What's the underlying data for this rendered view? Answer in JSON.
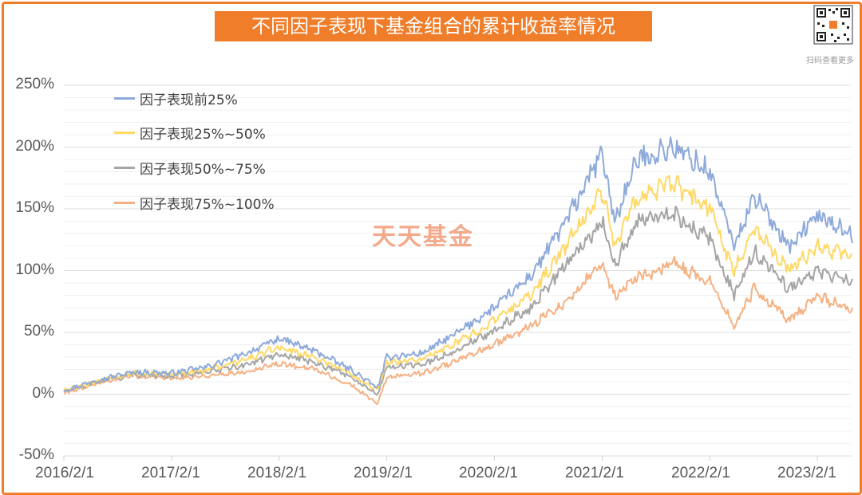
{
  "title": "不同因子表现下基金组合的累计收益率情况",
  "qr_caption": "扫码查看更多",
  "watermark": "天天基金",
  "colors": {
    "frame": "#f07d2a",
    "title_bg": "#f07d2a",
    "grid": "#e6e6e6"
  },
  "chart_data": {
    "type": "line",
    "title": "不同因子表现下基金组合的累计收益率情况",
    "xlabel": "",
    "ylabel": "",
    "x_tick_labels": [
      "2016/2/1",
      "2017/2/1",
      "2018/2/1",
      "2019/2/1",
      "2020/2/1",
      "2021/2/1",
      "2022/2/1",
      "2023/2/1"
    ],
    "y_tick_labels": [
      "250%",
      "200%",
      "150%",
      "100%",
      "50%",
      "0%",
      "-50%"
    ],
    "ylim": [
      -50,
      250
    ],
    "xlim": [
      "2016-02-01",
      "2023-05-31"
    ],
    "grid": true,
    "legend_position": "top-left",
    "x": [
      "2016-02-01",
      "2016-06-01",
      "2016-10-01",
      "2017-02-01",
      "2017-06-01",
      "2017-10-01",
      "2018-02-01",
      "2018-06-01",
      "2018-10-01",
      "2019-01-01",
      "2019-02-01",
      "2019-06-01",
      "2019-10-01",
      "2020-02-01",
      "2020-06-01",
      "2020-10-01",
      "2021-02-01",
      "2021-03-15",
      "2021-06-01",
      "2021-10-01",
      "2022-02-01",
      "2022-04-25",
      "2022-07-01",
      "2022-10-31",
      "2023-02-01",
      "2023-05-31"
    ],
    "series": [
      {
        "name": "因子表现前25%",
        "color": "#8eaadb",
        "values": [
          3,
          12,
          18,
          17,
          22,
          32,
          45,
          35,
          20,
          5,
          30,
          33,
          50,
          70,
          95,
          140,
          195,
          140,
          190,
          200,
          180,
          120,
          160,
          120,
          145,
          130
        ]
      },
      {
        "name": "因子表现25%~50%",
        "color": "#ffd966",
        "values": [
          3,
          11,
          17,
          16,
          20,
          27,
          38,
          30,
          17,
          3,
          26,
          28,
          42,
          60,
          80,
          120,
          165,
          120,
          160,
          170,
          150,
          100,
          135,
          100,
          120,
          110
        ]
      },
      {
        "name": "因子表现50%~75%",
        "color": "#a5a5a5",
        "values": [
          2,
          10,
          16,
          15,
          18,
          23,
          33,
          26,
          14,
          0,
          22,
          24,
          36,
          52,
          70,
          105,
          140,
          105,
          140,
          145,
          125,
          80,
          115,
          85,
          100,
          90
        ]
      },
      {
        "name": "因子表现75%~100%",
        "color": "#f4b183",
        "values": [
          1,
          9,
          15,
          13,
          15,
          18,
          25,
          20,
          8,
          -8,
          14,
          17,
          27,
          40,
          55,
          75,
          105,
          80,
          95,
          105,
          90,
          55,
          85,
          60,
          80,
          68
        ]
      }
    ]
  }
}
